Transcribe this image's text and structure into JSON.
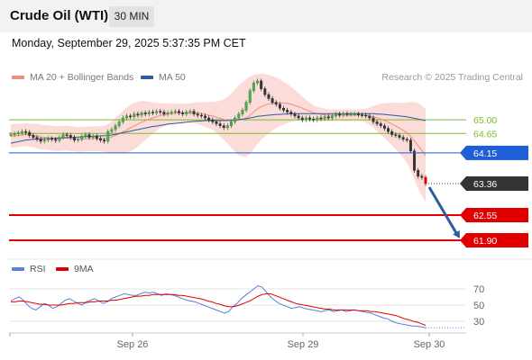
{
  "header": {
    "title": "Crude Oil (WTI)",
    "timeframe": "30 MIN"
  },
  "datetime": "Monday, September 29, 2025 5:37:35 PM CET",
  "legend": {
    "bb_label": "MA 20 + Bollinger Bands",
    "ma50_label": "MA 50",
    "credit": "Research © 2025 Trading Central",
    "bb_color": "#f08c84",
    "ma50_color": "#2e5b9e"
  },
  "rsi_legend": {
    "rsi_label": "RSI",
    "ma_label": "9MA",
    "rsi_color": "#5b7fd6",
    "ma_color": "#e00000"
  },
  "chart_data": {
    "type": "candlestick",
    "x_ticks": [
      "Sep 26",
      "Sep 29",
      "Sep 30"
    ],
    "ylim": [
      61.6,
      66.0
    ],
    "closes": [
      64.62,
      64.64,
      64.67,
      64.7,
      64.68,
      64.6,
      64.55,
      64.5,
      64.45,
      64.48,
      64.52,
      64.5,
      64.47,
      64.55,
      64.62,
      64.6,
      64.55,
      64.48,
      64.5,
      64.58,
      64.62,
      64.55,
      64.58,
      64.52,
      64.48,
      64.45,
      64.7,
      64.75,
      64.85,
      64.95,
      65.05,
      65.1,
      65.08,
      65.15,
      65.12,
      65.18,
      65.15,
      65.2,
      65.18,
      65.22,
      65.2,
      65.15,
      65.18,
      65.2,
      65.22,
      65.18,
      65.15,
      65.2,
      65.22,
      65.15,
      65.12,
      65.1,
      65.05,
      65.0,
      64.95,
      64.9,
      64.85,
      64.8,
      64.85,
      64.95,
      65.05,
      65.15,
      65.25,
      65.45,
      65.75,
      65.95,
      66.0,
      65.8,
      65.65,
      65.55,
      65.45,
      65.4,
      65.3,
      65.25,
      65.2,
      65.15,
      65.1,
      65.05,
      65.0,
      65.05,
      65.02,
      65.0,
      65.05,
      65.03,
      65.08,
      65.05,
      65.1,
      65.15,
      65.12,
      65.16,
      65.14,
      65.15,
      65.15,
      65.13,
      65.12,
      65.1,
      65.05,
      64.95,
      64.9,
      64.85,
      64.78,
      64.7,
      64.62,
      64.6,
      64.55,
      64.5,
      64.48,
      64.2,
      63.7,
      63.55,
      63.52,
      63.36
    ],
    "ma20": [
      64.58,
      64.59,
      64.6,
      64.61,
      64.62,
      64.61,
      64.6,
      64.58,
      64.56,
      64.55,
      64.54,
      64.53,
      64.52,
      64.52,
      64.53,
      64.53,
      64.52,
      64.51,
      64.5,
      64.5,
      64.51,
      64.51,
      64.52,
      64.52,
      64.51,
      64.51,
      64.53,
      64.56,
      64.6,
      64.64,
      64.69,
      64.74,
      64.79,
      64.84,
      64.89,
      64.94,
      64.98,
      65.02,
      65.05,
      65.08,
      65.11,
      65.13,
      65.15,
      65.16,
      65.17,
      65.18,
      65.18,
      65.18,
      65.18,
      65.18,
      65.17,
      65.16,
      65.14,
      65.12,
      65.1,
      65.07,
      65.04,
      65.01,
      64.99,
      64.98,
      64.98,
      64.99,
      65.01,
      65.05,
      65.12,
      65.2,
      65.28,
      65.34,
      65.38,
      65.41,
      65.43,
      65.44,
      65.44,
      65.43,
      65.42,
      65.4,
      65.37,
      65.34,
      65.3,
      65.26,
      65.22,
      65.18,
      65.16,
      65.14,
      65.13,
      65.12,
      65.12,
      65.12,
      65.12,
      65.12,
      65.12,
      65.12,
      65.12,
      65.12,
      65.12,
      65.11,
      65.1,
      65.08,
      65.05,
      65.02,
      64.98,
      64.94,
      64.89,
      64.84,
      64.79,
      64.73,
      64.67,
      64.58,
      64.46,
      64.33,
      64.21,
      64.08
    ],
    "ma50": [
      64.4,
      64.42,
      64.44,
      64.46,
      64.48,
      64.49,
      64.5,
      64.5,
      64.51,
      64.51,
      64.52,
      64.52,
      64.53,
      64.53,
      64.54,
      64.54,
      64.55,
      64.55,
      64.56,
      64.56,
      64.57,
      64.57,
      64.58,
      64.58,
      64.59,
      64.59,
      64.6,
      64.61,
      64.63,
      64.65,
      64.67,
      64.69,
      64.71,
      64.73,
      64.75,
      64.77,
      64.79,
      64.81,
      64.83,
      64.84,
      64.86,
      64.87,
      64.89,
      64.9,
      64.91,
      64.92,
      64.93,
      64.94,
      64.95,
      64.96,
      64.97,
      64.97,
      64.98,
      64.98,
      64.98,
      64.98,
      64.98,
      64.98,
      64.98,
      64.99,
      65.0,
      65.01,
      65.02,
      65.03,
      65.05,
      65.07,
      65.09,
      65.1,
      65.11,
      65.12,
      65.13,
      65.14,
      65.14,
      65.15,
      65.15,
      65.16,
      65.16,
      65.16,
      65.16,
      65.16,
      65.16,
      65.16,
      65.16,
      65.16,
      65.16,
      65.16,
      65.16,
      65.16,
      65.16,
      65.16,
      65.16,
      65.16,
      65.16,
      65.16,
      65.16,
      65.16,
      65.16,
      65.16,
      65.15,
      65.15,
      65.14,
      65.13,
      65.12,
      65.11,
      65.1,
      65.09,
      65.08,
      65.06,
      65.04,
      65.02,
      65.0,
      64.98
    ],
    "bb_width": [
      0.3,
      0.3,
      0.3,
      0.3,
      0.3,
      0.3,
      0.3,
      0.32,
      0.32,
      0.32,
      0.32,
      0.32,
      0.32,
      0.32,
      0.32,
      0.32,
      0.32,
      0.32,
      0.32,
      0.32,
      0.32,
      0.32,
      0.32,
      0.32,
      0.32,
      0.34,
      0.36,
      0.4,
      0.45,
      0.5,
      0.55,
      0.58,
      0.6,
      0.6,
      0.58,
      0.55,
      0.5,
      0.45,
      0.4,
      0.36,
      0.32,
      0.3,
      0.28,
      0.26,
      0.25,
      0.24,
      0.24,
      0.24,
      0.25,
      0.26,
      0.28,
      0.3,
      0.32,
      0.34,
      0.36,
      0.4,
      0.46,
      0.52,
      0.6,
      0.7,
      0.8,
      0.9,
      0.95,
      1.0,
      1.0,
      0.95,
      0.9,
      0.85,
      0.8,
      0.75,
      0.7,
      0.65,
      0.6,
      0.55,
      0.5,
      0.45,
      0.4,
      0.35,
      0.3,
      0.26,
      0.22,
      0.2,
      0.18,
      0.17,
      0.16,
      0.15,
      0.15,
      0.15,
      0.15,
      0.15,
      0.15,
      0.15,
      0.15,
      0.15,
      0.16,
      0.18,
      0.22,
      0.28,
      0.34,
      0.4,
      0.45,
      0.5,
      0.55,
      0.6,
      0.65,
      0.7,
      0.78,
      0.88,
      1.0,
      1.1,
      1.15,
      1.2
    ],
    "levels": [
      {
        "label": "65.00",
        "value": 65.0,
        "color": "#7bbd2a",
        "style": "thin"
      },
      {
        "label": "64.65",
        "value": 64.65,
        "color": "#7bbd2a",
        "style": "thin"
      },
      {
        "label": "64.15",
        "value": 64.15,
        "color": "#1e5fd6",
        "style": "tag"
      },
      {
        "label": "63.36",
        "value": 63.36,
        "color": "#333333",
        "style": "last"
      },
      {
        "label": "62.55",
        "value": 62.55,
        "color": "#e00000",
        "style": "bold"
      },
      {
        "label": "61.90",
        "value": 61.9,
        "color": "#e00000",
        "style": "bold"
      }
    ],
    "arrow_target": 61.95,
    "rsi": {
      "ylim": [
        20,
        80
      ],
      "ticks": [
        "70",
        "50",
        "30"
      ],
      "rsi": [
        55,
        58,
        60,
        56,
        50,
        46,
        44,
        48,
        52,
        50,
        46,
        48,
        52,
        56,
        58,
        55,
        52,
        50,
        54,
        56,
        58,
        55,
        52,
        54,
        58,
        60,
        62,
        64,
        63,
        62,
        62,
        64,
        66,
        65,
        66,
        64,
        62,
        64,
        63,
        62,
        60,
        58,
        56,
        55,
        54,
        52,
        50,
        48,
        46,
        44,
        42,
        40,
        42,
        48,
        52,
        58,
        62,
        66,
        70,
        74,
        72,
        66,
        60,
        56,
        52,
        50,
        48,
        46,
        47,
        48,
        46,
        45,
        44,
        43,
        42,
        43,
        44,
        42,
        43,
        44,
        42,
        43,
        44,
        43,
        42,
        41,
        40,
        38,
        36,
        34,
        33,
        30,
        28,
        27,
        26,
        25,
        24,
        24,
        23,
        22
      ],
      "ma": [
        54,
        54,
        55,
        55,
        54,
        53,
        52,
        51,
        51,
        50,
        50,
        50,
        50,
        51,
        52,
        52,
        53,
        53,
        53,
        54,
        54,
        55,
        55,
        55,
        56,
        56,
        57,
        58,
        59,
        60,
        61,
        61,
        62,
        62,
        63,
        63,
        63,
        63,
        63,
        63,
        62,
        62,
        61,
        60,
        59,
        58,
        57,
        55,
        54,
        52,
        51,
        49,
        48,
        48,
        49,
        51,
        53,
        55,
        58,
        61,
        63,
        64,
        64,
        62,
        60,
        58,
        56,
        54,
        52,
        51,
        50,
        49,
        48,
        47,
        46,
        45,
        45,
        44,
        44,
        44,
        44,
        44,
        44,
        43,
        43,
        43,
        42,
        42,
        41,
        40,
        39,
        38,
        37,
        35,
        33,
        32,
        30,
        29,
        27,
        25
      ]
    }
  }
}
